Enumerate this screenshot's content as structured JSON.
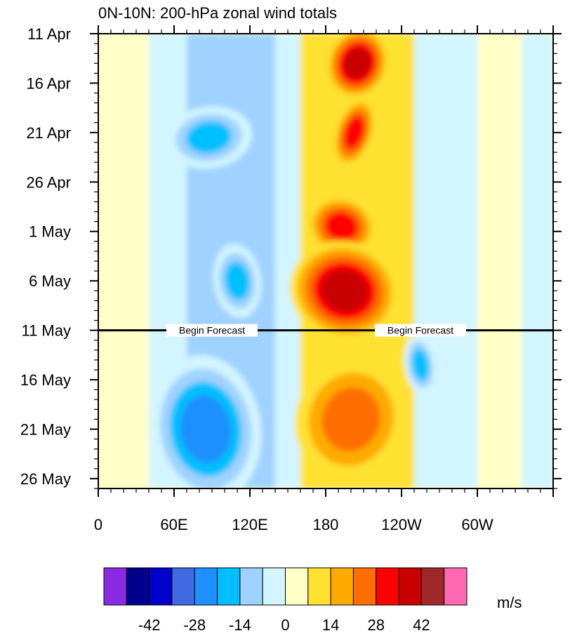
{
  "chart_data": {
    "type": "heatmap",
    "title": "0N-10N: 200-hPa zonal wind totals",
    "x_ticks": [
      "0",
      "60E",
      "120E",
      "180",
      "120W",
      "60W"
    ],
    "x_range_deg": [
      0,
      360
    ],
    "x_tick_values_deg": [
      0,
      60,
      120,
      180,
      240,
      300
    ],
    "y_ticks": [
      "11 Apr",
      "16 Apr",
      "21 Apr",
      "26 Apr",
      "1 May",
      "6 May",
      "11 May",
      "16 May",
      "21 May",
      "26 May"
    ],
    "y_tick_days_from_start": [
      0,
      5,
      10,
      15,
      20,
      25,
      30,
      35,
      40,
      45
    ],
    "y_range_days": [
      0,
      46
    ],
    "forecast_start": "11 May",
    "annotation": "Begin Forecast",
    "units": "m/s",
    "colorbar": {
      "levels": [
        -49,
        -42,
        -35,
        -28,
        -21,
        -14,
        -7,
        0,
        7,
        14,
        21,
        28,
        35,
        42,
        49
      ],
      "labels": [
        "-42",
        "-28",
        "-14",
        "0",
        "14",
        "28",
        "42"
      ],
      "colors": [
        "#8a2be2",
        "#00008b",
        "#0000cd",
        "#4169e1",
        "#1e90ff",
        "#00bfff",
        "#a0d2ff",
        "#d2f5ff",
        "#ffffc8",
        "#ffe132",
        "#ffaa00",
        "#ff6e00",
        "#ff0000",
        "#c80000",
        "#a02828",
        "#ff69b4"
      ]
    },
    "features": [
      {
        "name": "westerly core",
        "lon_deg": [
          185,
          225
        ],
        "days": [
          0,
          6
        ],
        "max_ms": 38
      },
      {
        "name": "westerly core",
        "lon_deg": [
          190,
          215
        ],
        "days": [
          7,
          13
        ],
        "max_ms": 30
      },
      {
        "name": "westerly core",
        "lon_deg": [
          170,
          215
        ],
        "days": [
          17,
          22
        ],
        "max_ms": 28
      },
      {
        "name": "westerly core",
        "lon_deg": [
          160,
          230
        ],
        "days": [
          22,
          30
        ],
        "max_ms": 36
      },
      {
        "name": "westerly core",
        "lon_deg": [
          165,
          235
        ],
        "days": [
          34,
          44
        ],
        "max_ms": 26
      },
      {
        "name": "easterly core",
        "lon_deg": [
          60,
          115
        ],
        "days": [
          8,
          13
        ],
        "max_ms": -18
      },
      {
        "name": "easterly core",
        "lon_deg": [
          95,
          125
        ],
        "days": [
          22,
          28
        ],
        "max_ms": -16
      },
      {
        "name": "easterly core",
        "lon_deg": [
          50,
          120
        ],
        "days": [
          34,
          46
        ],
        "max_ms": -24
      },
      {
        "name": "easterly core",
        "lon_deg": [
          245,
          265
        ],
        "days": [
          31,
          36
        ],
        "max_ms": -17
      }
    ]
  }
}
